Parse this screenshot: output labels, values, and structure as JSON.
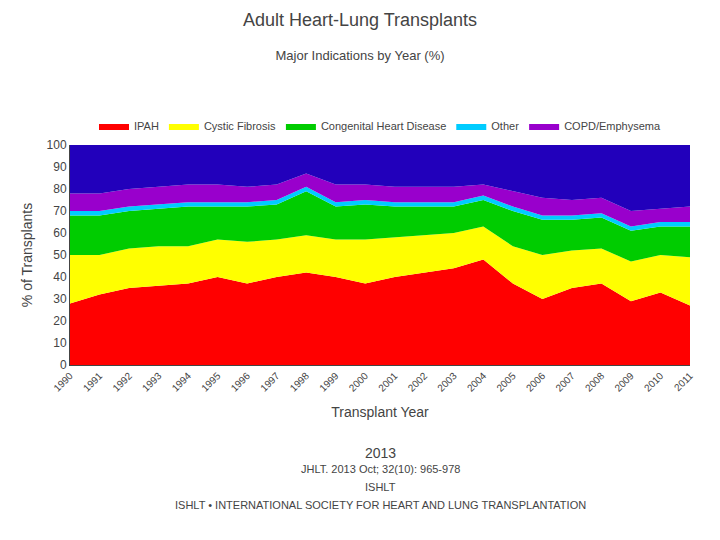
{
  "chart_data": {
    "type": "area",
    "title": "Adult Heart-Lung Transplants",
    "subtitle": "Major Indications by Year (%)",
    "xlabel": "Transplant Year",
    "ylabel": "% of Transplants",
    "stacked": true,
    "x": [
      1990,
      1991,
      1992,
      1993,
      1994,
      1995,
      1996,
      1997,
      1998,
      1999,
      2000,
      2001,
      2002,
      2003,
      2004,
      2005,
      2006,
      2007,
      2008,
      2009,
      2010,
      2011
    ],
    "series": [
      {
        "name": "IPAH",
        "color": "#ff0000",
        "values": [
          28,
          32,
          35,
          36,
          37,
          40,
          37,
          40,
          42,
          40,
          37,
          40,
          42,
          44,
          48,
          37,
          30,
          35,
          37,
          29,
          33,
          27
        ]
      },
      {
        "name": "Cystic Fibrosis",
        "color": "#ffff00",
        "values": [
          22,
          18,
          18,
          18,
          17,
          17,
          19,
          17,
          17,
          17,
          20,
          18,
          17,
          16,
          15,
          17,
          20,
          17,
          16,
          18,
          17,
          22
        ]
      },
      {
        "name": "Congenital Heart Disease",
        "color": "#00cc00",
        "values": [
          18,
          18,
          17,
          17,
          18,
          15,
          16,
          16,
          20,
          15,
          16,
          14,
          13,
          12,
          12,
          16,
          16,
          14,
          14,
          14,
          13,
          14
        ]
      },
      {
        "name": "Other",
        "color": "#00ccff",
        "values": [
          2,
          2,
          2,
          2,
          2,
          2,
          2,
          2,
          2,
          2,
          2,
          2,
          2,
          2,
          2,
          2,
          2,
          2,
          2,
          2,
          2,
          2
        ]
      },
      {
        "name": "COPD/Emphysema",
        "color": "#9900cc",
        "values": [
          8,
          8,
          8,
          8,
          8,
          8,
          7,
          7,
          6,
          8,
          7,
          7,
          7,
          7,
          5,
          7,
          8,
          7,
          7,
          7,
          6,
          7
        ]
      },
      {
        "color": "#2200bb",
        "values": [
          22,
          22,
          20,
          19,
          18,
          18,
          19,
          18,
          13,
          18,
          18,
          19,
          19,
          19,
          18,
          21,
          24,
          25,
          24,
          30,
          29,
          28
        ]
      }
    ],
    "xlim": [
      1990,
      2011
    ],
    "xticks": [
      1990,
      1991,
      1992,
      1993,
      1994,
      1995,
      1996,
      1997,
      1998,
      1999,
      2000,
      2001,
      2002,
      2003,
      2004,
      2005,
      2006,
      2007,
      2008,
      2009,
      2010,
      2011
    ],
    "ylim": [
      0,
      100
    ],
    "yticks": [
      0,
      10,
      20,
      30,
      40,
      50,
      60,
      70,
      80,
      90,
      100
    ],
    "grid": false,
    "legend": "top",
    "annotations": [
      "2013",
      "JHLT. 2013 Oct; 32(10): 965-978",
      "ISHLT",
      "ISHLT • INTERNATIONAL SOCIETY FOR HEART AND LUNG TRANSPLANTATION"
    ]
  }
}
